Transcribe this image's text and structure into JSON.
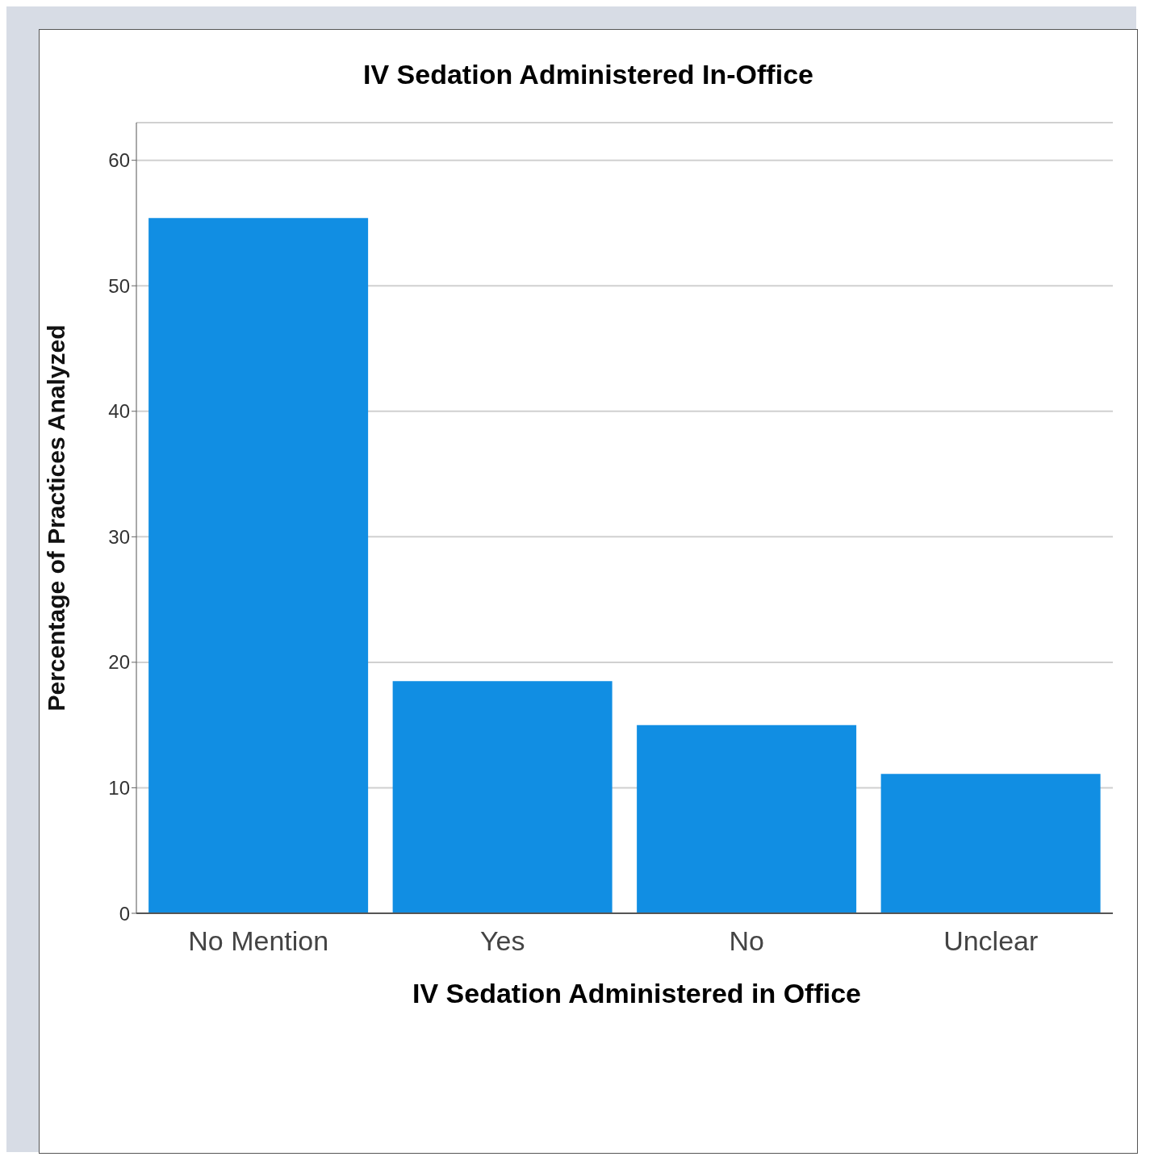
{
  "chart_data": {
    "type": "bar",
    "title": "IV Sedation Administered In-Office",
    "xlabel": "IV Sedation Administered in Office",
    "ylabel": "Percentage of Practices Analyzed",
    "categories": [
      "No Mention",
      "Yes",
      "No",
      "Unclear"
    ],
    "values": [
      55.4,
      18.5,
      15.0,
      11.1
    ],
    "color": "#118ee3",
    "ylim": [
      0,
      63
    ],
    "yticks": [
      0,
      10,
      20,
      30,
      40,
      50,
      60
    ],
    "grid": "y"
  }
}
